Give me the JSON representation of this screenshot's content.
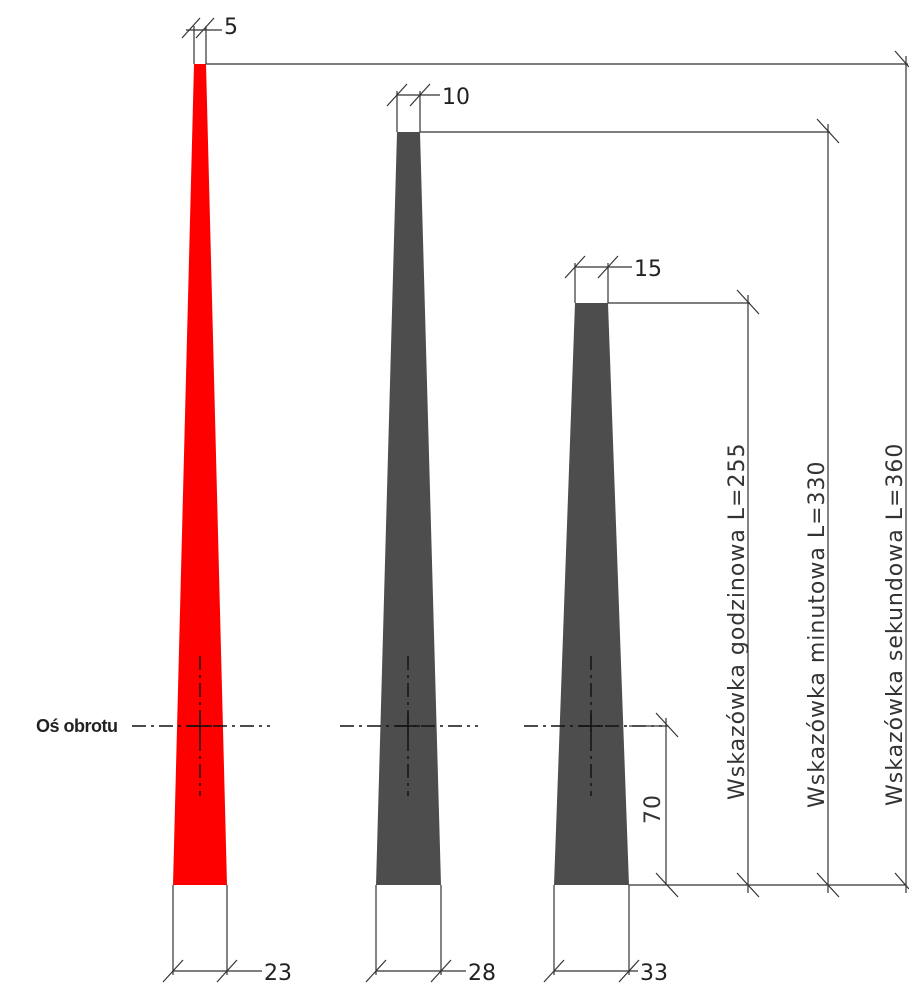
{
  "axis_label": "Oś obrotu",
  "colors": {
    "second_hand": "#ff0000",
    "hand_fill": "#4d4d4d",
    "line": "#333333"
  },
  "hands": [
    {
      "id": "second",
      "tip_width_label": "5",
      "base_width_label": "23",
      "length_label": "Wskazówka  sekundowa  L=360"
    },
    {
      "id": "minute",
      "tip_width_label": "10",
      "base_width_label": "28",
      "length_label": "Wskazówka  minutowa  L=330"
    },
    {
      "id": "hour",
      "tip_width_label": "15",
      "base_width_label": "33",
      "length_label": "Wskazówka  godzinowa  L=255"
    }
  ],
  "tail_length_label": "70"
}
